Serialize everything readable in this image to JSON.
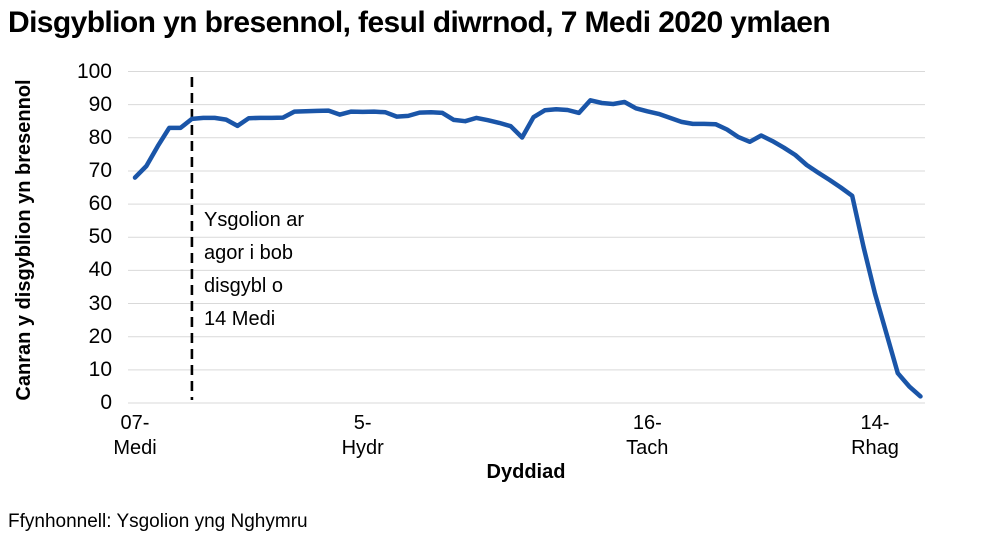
{
  "chart_data": {
    "type": "line",
    "title": "Disgyblion yn bresennol, fesul diwrnod, 7 Medi 2020 ymlaen",
    "xlabel": "Dyddiad",
    "ylabel_lines": [
      "Canran y disgyblion yn",
      "bresennol"
    ],
    "source": "Ffynhonnell: Ysgolion yng Nghymru",
    "ylim": [
      0,
      100
    ],
    "yticks": [
      0,
      10,
      20,
      30,
      40,
      50,
      60,
      70,
      80,
      90,
      100
    ],
    "grid": "horizontal-light-gray",
    "legend": "none",
    "xticks": [
      {
        "index": 0,
        "label": "07-\nMedi"
      },
      {
        "index": 20,
        "label": "5-\nHydr"
      },
      {
        "index": 45,
        "label": "16-\nTach"
      },
      {
        "index": 65,
        "label": "14-\nRhag"
      }
    ],
    "annotation": {
      "lines": [
        "Ysgolion ar",
        "agor i bob",
        "disgybl o",
        "14 Medi"
      ],
      "at_index": 5,
      "marker": "vertical-dashed-line",
      "color": "#000000"
    },
    "series": [
      {
        "name": "Canran y disgyblion yn bresennol",
        "color": "#1a55a8",
        "dates": [
          "2020-09-07",
          "2020-09-08",
          "2020-09-09",
          "2020-09-10",
          "2020-09-11",
          "2020-09-14",
          "2020-09-15",
          "2020-09-16",
          "2020-09-17",
          "2020-09-18",
          "2020-09-21",
          "2020-09-22",
          "2020-09-23",
          "2020-09-24",
          "2020-09-25",
          "2020-09-28",
          "2020-09-29",
          "2020-09-30",
          "2020-10-01",
          "2020-10-02",
          "2020-10-05",
          "2020-10-06",
          "2020-10-07",
          "2020-10-08",
          "2020-10-09",
          "2020-10-12",
          "2020-10-13",
          "2020-10-14",
          "2020-10-15",
          "2020-10-16",
          "2020-10-19",
          "2020-10-20",
          "2020-10-21",
          "2020-10-22",
          "2020-10-23",
          "2020-11-02",
          "2020-11-03",
          "2020-11-04",
          "2020-11-05",
          "2020-11-06",
          "2020-11-09",
          "2020-11-10",
          "2020-11-11",
          "2020-11-12",
          "2020-11-13",
          "2020-11-16",
          "2020-11-17",
          "2020-11-18",
          "2020-11-19",
          "2020-11-20",
          "2020-11-23",
          "2020-11-24",
          "2020-11-25",
          "2020-11-26",
          "2020-11-27",
          "2020-11-30",
          "2020-12-01",
          "2020-12-02",
          "2020-12-03",
          "2020-12-04",
          "2020-12-07",
          "2020-12-08",
          "2020-12-09",
          "2020-12-10",
          "2020-12-11",
          "2020-12-14",
          "2020-12-15",
          "2020-12-16",
          "2020-12-17",
          "2020-12-18"
        ],
        "values": [
          68,
          71.5,
          77.5,
          83,
          83,
          85.7,
          86,
          86,
          85.5,
          83.6,
          85.9,
          86,
          86,
          86.1,
          87.9,
          88,
          88.1,
          88.2,
          87,
          87.9,
          87.8,
          87.9,
          87.7,
          86.4,
          86.6,
          87.6,
          87.7,
          87.5,
          85.4,
          85,
          86,
          85.3,
          84.5,
          83.5,
          80.1,
          86.2,
          88.3,
          88.6,
          88.4,
          87.5,
          91.3,
          90.5,
          90.2,
          90.8,
          88.9,
          88,
          87.2,
          86,
          84.8,
          84.2,
          84.2,
          84.1,
          82.5,
          80.2,
          78.8,
          80.7,
          79,
          77,
          74.8,
          71.8,
          69.5,
          67.3,
          65,
          62.5,
          47,
          33,
          21,
          9,
          5,
          2
        ]
      }
    ],
    "colors": {
      "line": "#1a55a8",
      "gridline": "#d9d9d9",
      "annotation_line": "#000000",
      "text": "#000000",
      "background": "#ffffff"
    }
  }
}
